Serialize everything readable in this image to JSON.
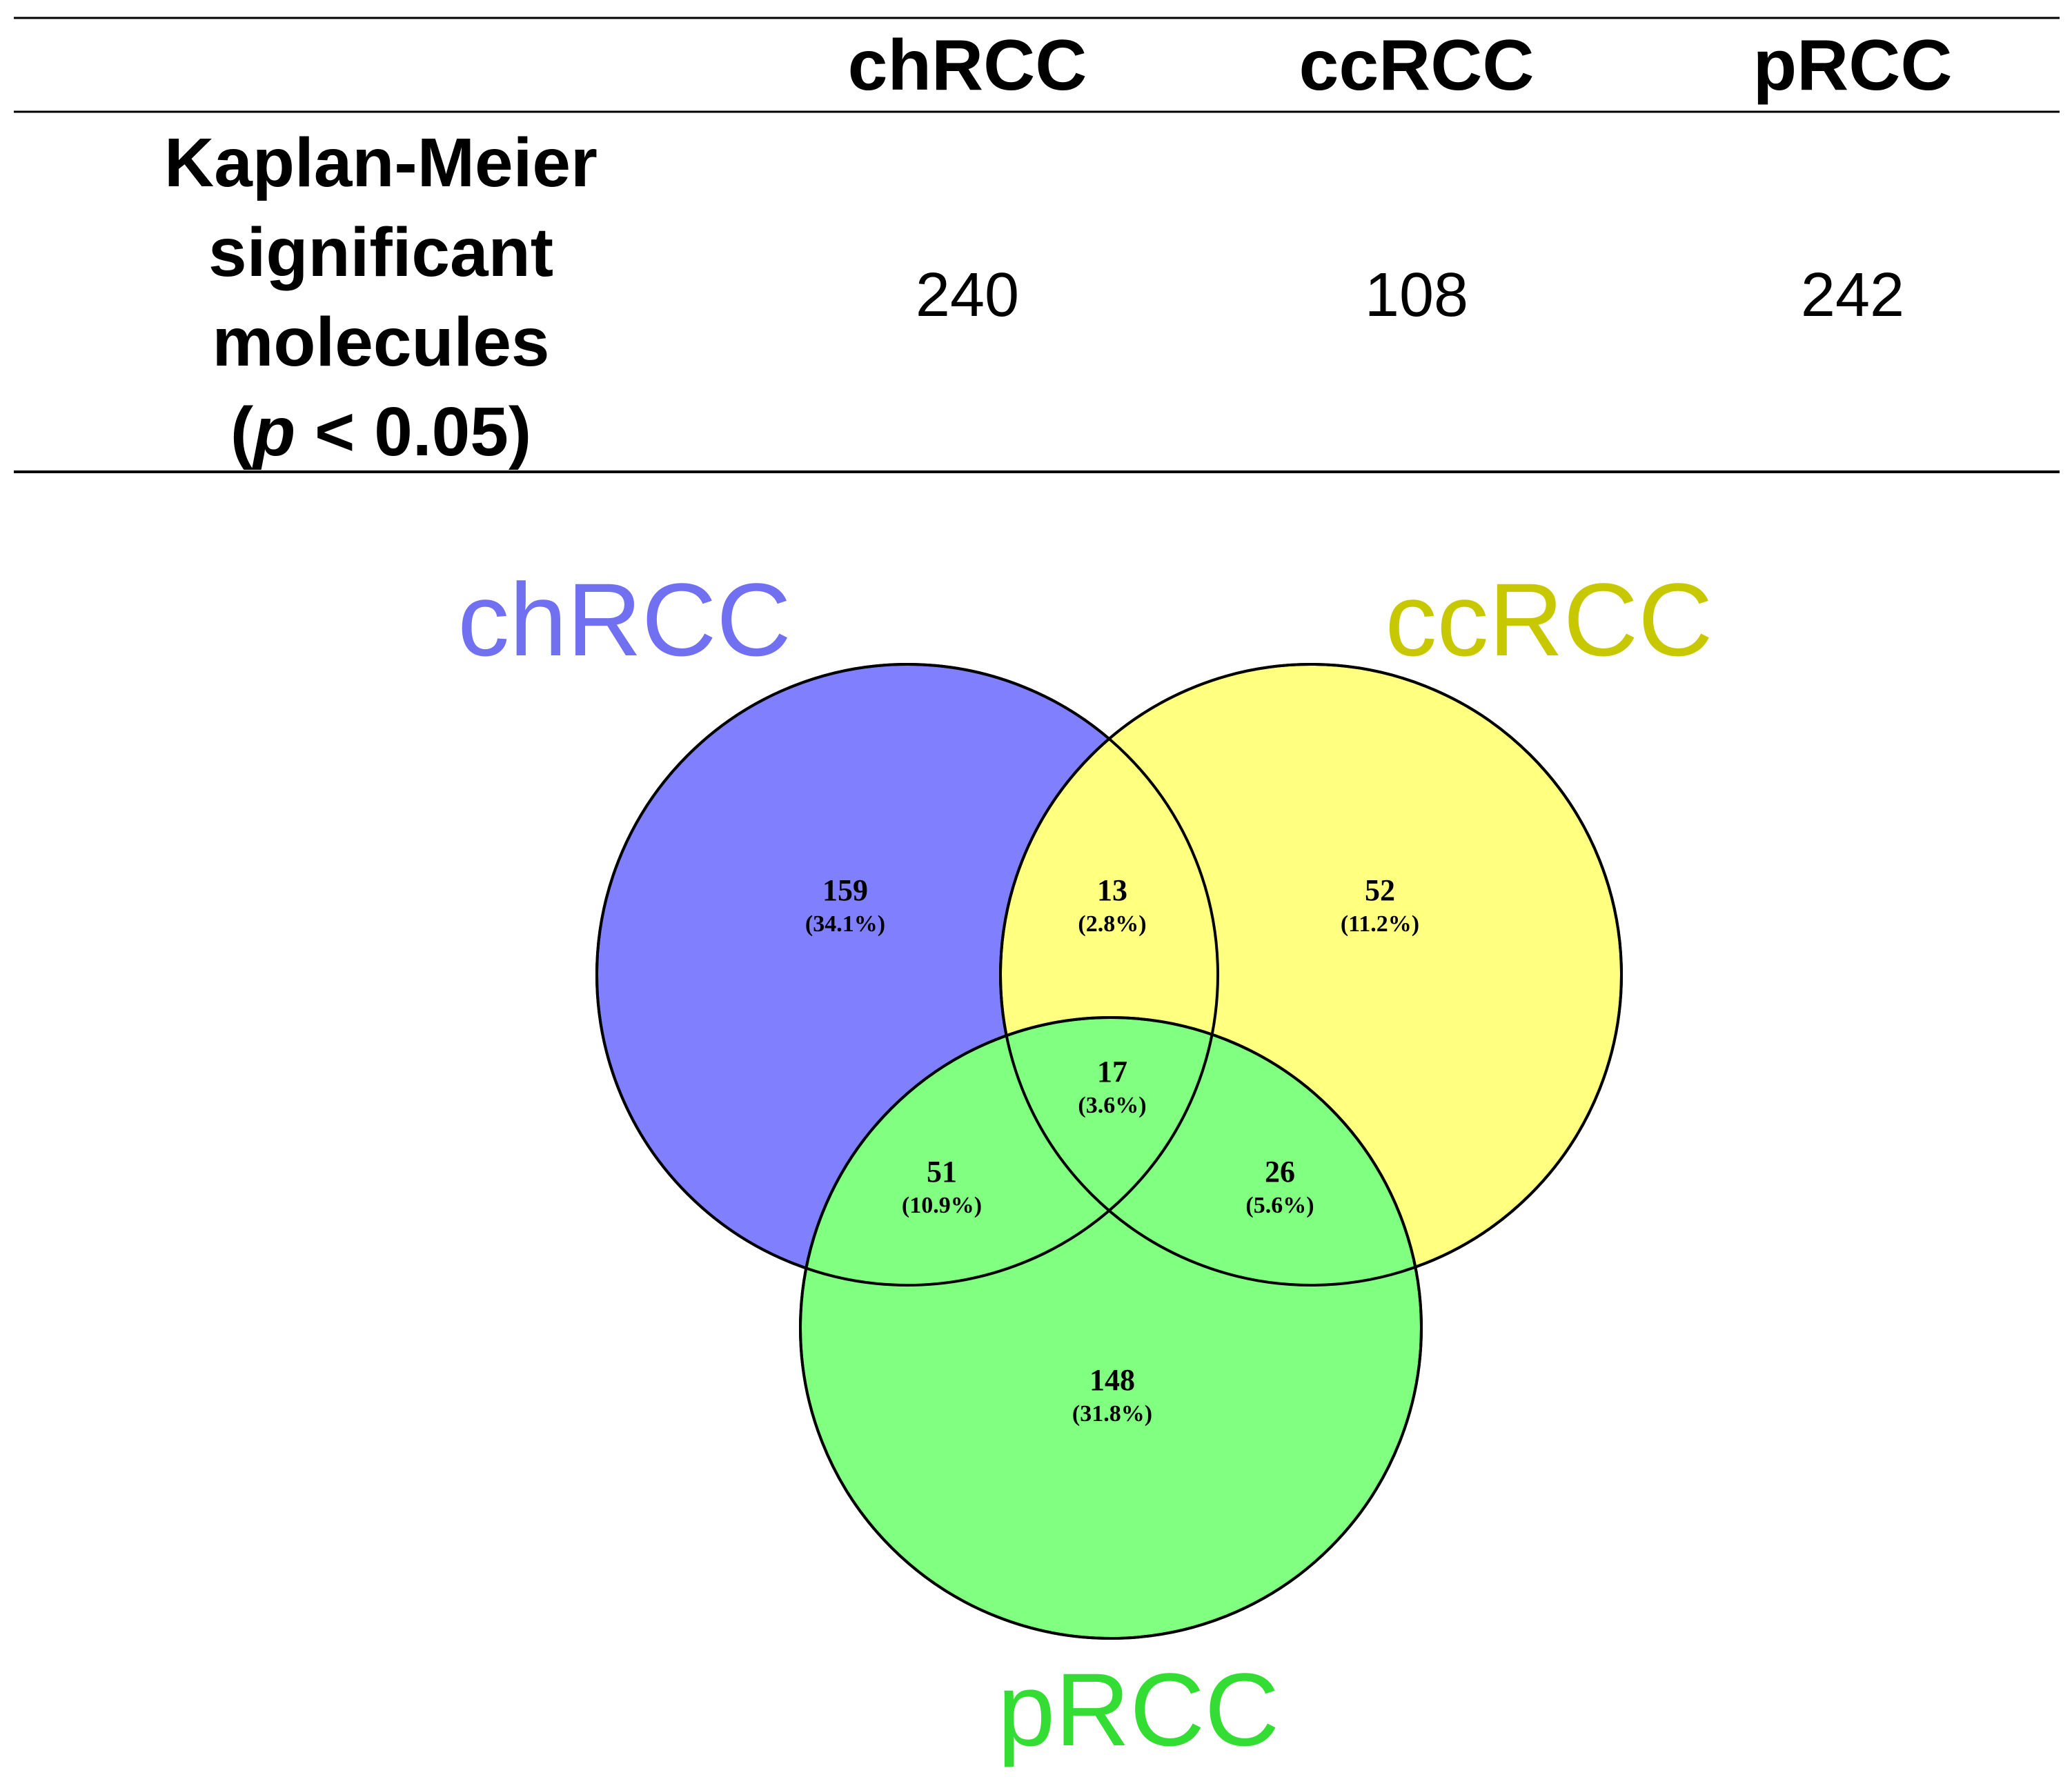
{
  "table": {
    "columns": [
      "chRCC",
      "ccRCC",
      "pRCC"
    ],
    "row_label_lines": [
      "Kaplan-Meier",
      "significant",
      "molecules"
    ],
    "row_label_p": {
      "open": "(",
      "italic": "p",
      "rest": " < 0.05)"
    },
    "values": [
      "240",
      "108",
      "242"
    ]
  },
  "venn": {
    "sets": [
      {
        "name": "chRCC",
        "fill": "#8080ff",
        "label_color": "#7070f0"
      },
      {
        "name": "ccRCC",
        "fill": "#ffff80",
        "label_color": "#c8c800"
      },
      {
        "name": "pRCC",
        "fill": "#80ff80",
        "label_color": "#33dd33"
      }
    ],
    "regions": {
      "chRCC_only": {
        "count": "159",
        "pct": "(34.1%)"
      },
      "ccRCC_only": {
        "count": "52",
        "pct": "(11.2%)"
      },
      "pRCC_only": {
        "count": "148",
        "pct": "(31.8%)"
      },
      "chRCC_ccRCC": {
        "count": "13",
        "pct": "(2.8%)"
      },
      "chRCC_pRCC": {
        "count": "51",
        "pct": "(10.9%)"
      },
      "ccRCC_pRCC": {
        "count": "26",
        "pct": "(5.6%)"
      },
      "all": {
        "count": "17",
        "pct": "(3.6%)"
      }
    }
  }
}
